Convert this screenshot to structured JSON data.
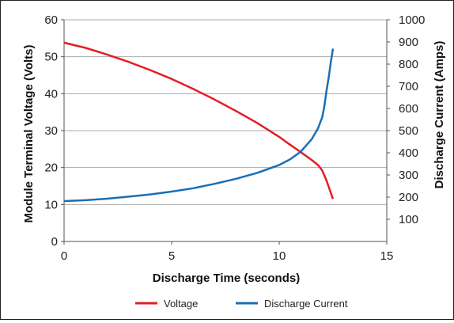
{
  "chart_data": {
    "type": "line",
    "xlabel": "Discharge Time (seconds)",
    "ylabel_left": "Module Terminal Voltage (Volts)",
    "ylabel_right": "Discharge Current (Amps)",
    "xlim": [
      0,
      15
    ],
    "ylim_left": [
      0,
      60
    ],
    "ylim_right": [
      0,
      1000
    ],
    "x_ticks": [
      0,
      5,
      10,
      15
    ],
    "y_ticks_left": [
      0,
      10,
      20,
      30,
      40,
      50,
      60
    ],
    "y_ticks_right": [
      100,
      200,
      300,
      400,
      500,
      600,
      700,
      800,
      900,
      1000
    ],
    "grid": "horizontal",
    "legend_position": "bottom",
    "series": [
      {
        "name": "Voltage",
        "axis": "left",
        "color": "#e31e24",
        "x": [
          0,
          1,
          2,
          3,
          4,
          5,
          6,
          7,
          8,
          9,
          10,
          10.5,
          11,
          11.5,
          11.8,
          12,
          12.2,
          12.5
        ],
        "y": [
          53.8,
          52.4,
          50.6,
          48.6,
          46.4,
          44.0,
          41.3,
          38.4,
          35.3,
          32.0,
          28.3,
          26.2,
          24.2,
          22.1,
          20.7,
          19.2,
          16.5,
          11.5
        ]
      },
      {
        "name": "Discharge Current",
        "axis": "right",
        "color": "#1a6fb4",
        "x": [
          0,
          1,
          2,
          3,
          4,
          5,
          6,
          7,
          8,
          9,
          10,
          10.5,
          11,
          11.5,
          11.8,
          12,
          12.1,
          12.2,
          12.3,
          12.4,
          12.5
        ],
        "y": [
          182,
          186,
          193,
          202,
          212,
          225,
          240,
          260,
          283,
          310,
          345,
          370,
          405,
          460,
          510,
          560,
          610,
          680,
          740,
          810,
          870
        ]
      }
    ]
  }
}
